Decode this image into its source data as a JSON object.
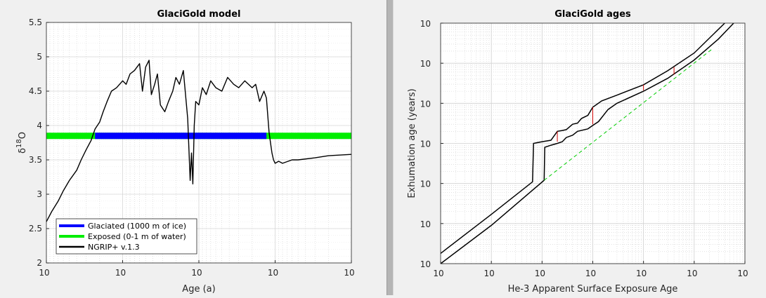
{
  "chart_data": [
    {
      "type": "line",
      "title": "GlaciGold model",
      "xlabel": "Age (a)",
      "ylabel_main": "δ",
      "ylabel_sup": "18",
      "ylabel_end": "O",
      "x_scale": "log-reversed",
      "xlim": [
        10000000,
        1000
      ],
      "ylim": [
        2,
        5.5
      ],
      "x_ticks": [
        {
          "value": 10000000,
          "base": "10",
          "exp": "7"
        },
        {
          "value": 1000000,
          "base": "10",
          "exp": "6"
        },
        {
          "value": 100000,
          "base": "10",
          "exp": "5"
        },
        {
          "value": 10000,
          "base": "10",
          "exp": "4"
        },
        {
          "value": 1000,
          "base": "10",
          "exp": "3"
        }
      ],
      "y_ticks": [
        {
          "value": 2,
          "label": "2"
        },
        {
          "value": 2.5,
          "label": "2.5"
        },
        {
          "value": 3,
          "label": "3"
        },
        {
          "value": 3.5,
          "label": "3.5"
        },
        {
          "value": 4,
          "label": "4"
        },
        {
          "value": 4.5,
          "label": "4.5"
        },
        {
          "value": 5,
          "label": "5"
        },
        {
          "value": 5.5,
          "label": "5.5"
        }
      ],
      "grid": true,
      "legend_position": "bottom-left",
      "series": [
        {
          "name": "Glaciated (1000 m of ice)",
          "color": "#0000ff",
          "style": "band",
          "x_range": [
            2300000,
            13000
          ],
          "y": 3.85
        },
        {
          "name": "Exposed (0-1 m of water)",
          "color": "#00ee00",
          "style": "band",
          "x_range": [
            10000000,
            1000
          ],
          "y": 3.85
        },
        {
          "name": "NGRIP+ v.1.3",
          "color": "#000000",
          "style": "line",
          "points": [
            [
              10000000,
              2.6
            ],
            [
              8500000,
              2.75
            ],
            [
              7000000,
              2.9
            ],
            [
              6000000,
              3.05
            ],
            [
              5000000,
              3.2
            ],
            [
              4000000,
              3.35
            ],
            [
              3500000,
              3.5
            ],
            [
              3000000,
              3.65
            ],
            [
              2600000,
              3.78
            ],
            [
              2300000,
              3.95
            ],
            [
              2000000,
              4.05
            ],
            [
              1800000,
              4.2
            ],
            [
              1600000,
              4.35
            ],
            [
              1400000,
              4.5
            ],
            [
              1200000,
              4.55
            ],
            [
              1000000,
              4.65
            ],
            [
              900000,
              4.6
            ],
            [
              800000,
              4.75
            ],
            [
              700000,
              4.8
            ],
            [
              600000,
              4.9
            ],
            [
              550000,
              4.5
            ],
            [
              500000,
              4.85
            ],
            [
              450000,
              4.95
            ],
            [
              420000,
              4.45
            ],
            [
              380000,
              4.6
            ],
            [
              350000,
              4.75
            ],
            [
              320000,
              4.3
            ],
            [
              280000,
              4.2
            ],
            [
              250000,
              4.35
            ],
            [
              220000,
              4.5
            ],
            [
              200000,
              4.7
            ],
            [
              180000,
              4.6
            ],
            [
              160000,
              4.8
            ],
            [
              140000,
              4.1
            ],
            [
              130000,
              3.2
            ],
            [
              125000,
              3.6
            ],
            [
              120000,
              3.15
            ],
            [
              115000,
              4.0
            ],
            [
              110000,
              4.35
            ],
            [
              100000,
              4.3
            ],
            [
              90000,
              4.55
            ],
            [
              80000,
              4.45
            ],
            [
              70000,
              4.65
            ],
            [
              60000,
              4.55
            ],
            [
              50000,
              4.5
            ],
            [
              42000,
              4.7
            ],
            [
              35000,
              4.6
            ],
            [
              30000,
              4.55
            ],
            [
              25000,
              4.65
            ],
            [
              20000,
              4.55
            ],
            [
              18000,
              4.6
            ],
            [
              16000,
              4.35
            ],
            [
              14000,
              4.5
            ],
            [
              13000,
              4.4
            ],
            [
              12000,
              3.9
            ],
            [
              11500,
              3.75
            ],
            [
              11000,
              3.6
            ],
            [
              10500,
              3.5
            ],
            [
              10000,
              3.45
            ],
            [
              9000,
              3.48
            ],
            [
              8000,
              3.45
            ],
            [
              6000,
              3.5
            ],
            [
              5000,
              3.5
            ],
            [
              3000,
              3.53
            ],
            [
              2000,
              3.56
            ],
            [
              1000,
              3.58
            ]
          ]
        }
      ]
    },
    {
      "type": "line",
      "title": "GlaciGold ages",
      "xlabel": "He-3 Apparent Surface Exposure Age",
      "ylabel": "Exhumation age (years)",
      "x_scale": "log",
      "y_scale": "log",
      "xlim": [
        100,
        100000000
      ],
      "ylim": [
        100,
        100000000
      ],
      "x_ticks": [
        {
          "value": 100,
          "base": "10",
          "exp": "2"
        },
        {
          "value": 1000,
          "base": "10",
          "exp": "3"
        },
        {
          "value": 10000,
          "base": "10",
          "exp": "4"
        },
        {
          "value": 100000,
          "base": "10",
          "exp": "5"
        },
        {
          "value": 1000000,
          "base": "10",
          "exp": "6"
        },
        {
          "value": 10000000,
          "base": "10",
          "exp": "7"
        },
        {
          "value": 100000000,
          "base": "10",
          "exp": "8"
        }
      ],
      "y_ticks": [
        {
          "value": 100,
          "base": "10",
          "exp": "2"
        },
        {
          "value": 1000,
          "base": "10",
          "exp": "3"
        },
        {
          "value": 10000,
          "base": "10",
          "exp": "4"
        },
        {
          "value": 100000,
          "base": "10",
          "exp": "5"
        },
        {
          "value": 1000000,
          "base": "10",
          "exp": "6"
        },
        {
          "value": 10000000,
          "base": "10",
          "exp": "7"
        },
        {
          "value": 100000000,
          "base": "10",
          "exp": "8"
        }
      ],
      "grid": true,
      "series": [
        {
          "color": "#000000",
          "style": "line",
          "points": [
            [
              100,
              180
            ],
            [
              1000,
              1700
            ],
            [
              6500,
              11000
            ],
            [
              6800,
              100000
            ],
            [
              10000,
              110000
            ],
            [
              15000,
              120000
            ],
            [
              20000,
              200000
            ],
            [
              25000,
              210000
            ],
            [
              30000,
              220000
            ],
            [
              40000,
              300000
            ],
            [
              50000,
              320000
            ],
            [
              60000,
              420000
            ],
            [
              80000,
              500000
            ],
            [
              100000,
              800000
            ],
            [
              150000,
              1150000
            ],
            [
              300000,
              1600000
            ],
            [
              1000000,
              2900000
            ],
            [
              3000000,
              6500000
            ],
            [
              10000000,
              18000000
            ],
            [
              40000000,
              100000000
            ]
          ]
        },
        {
          "color": "#000000",
          "style": "line",
          "points": [
            [
              100,
              100
            ],
            [
              1000,
              900
            ],
            [
              11000,
              12000
            ],
            [
              11300,
              80000
            ],
            [
              15000,
              90000
            ],
            [
              20000,
              100000
            ],
            [
              25000,
              110000
            ],
            [
              30000,
              140000
            ],
            [
              40000,
              160000
            ],
            [
              50000,
              200000
            ],
            [
              80000,
              230000
            ],
            [
              100000,
              280000
            ],
            [
              130000,
              350000
            ],
            [
              200000,
              700000
            ],
            [
              300000,
              1000000
            ],
            [
              1000000,
              2000000
            ],
            [
              3000000,
              4200000
            ],
            [
              10000000,
              12000000
            ],
            [
              30000000,
              40000000
            ],
            [
              60000000,
              100000000
            ]
          ]
        },
        {
          "color": "#00cc00",
          "style": "dashed",
          "points": [
            [
              11000,
              12000
            ],
            [
              23000000,
              23000000
            ]
          ]
        },
        {
          "color": "#cc0000",
          "style": "segments",
          "segments": [
            [
              [
                20000,
                110000
              ],
              [
                20000,
                200000
              ]
            ],
            [
              [
                100000,
                300000
              ],
              [
                100000,
                800000
              ]
            ],
            [
              [
                1000000,
                2100000
              ],
              [
                1000000,
                2900000
              ]
            ],
            [
              [
                4000000,
                5200000
              ],
              [
                4000000,
                8000000
              ]
            ]
          ]
        }
      ]
    }
  ]
}
